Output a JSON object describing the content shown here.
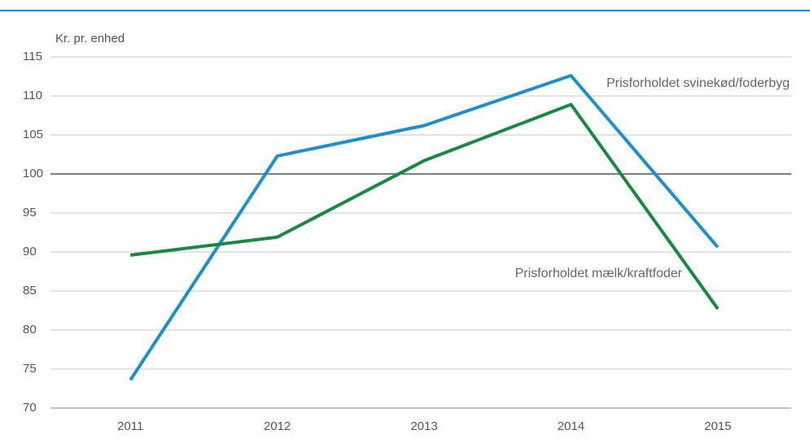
{
  "chart_data": {
    "type": "line",
    "y_axis_label": "Kr. pr. enhed",
    "categories": [
      "2011",
      "2012",
      "2013",
      "2014",
      "2015"
    ],
    "series": [
      {
        "name": "Prisforholdet svinekød/foderbyg",
        "color": "#1a8fd1",
        "values": [
          73.6,
          102.3,
          106.2,
          112.6,
          90.6
        ]
      },
      {
        "name": "Prisforholdet mælk/kraftfoder",
        "color": "#178a3e",
        "values": [
          89.6,
          91.9,
          101.7,
          108.9,
          82.7
        ]
      }
    ],
    "ylim": [
      70,
      115
    ],
    "yticks": [
      70,
      75,
      80,
      85,
      90,
      95,
      100,
      105,
      110,
      115
    ],
    "grid": true,
    "reference_line": 100
  }
}
